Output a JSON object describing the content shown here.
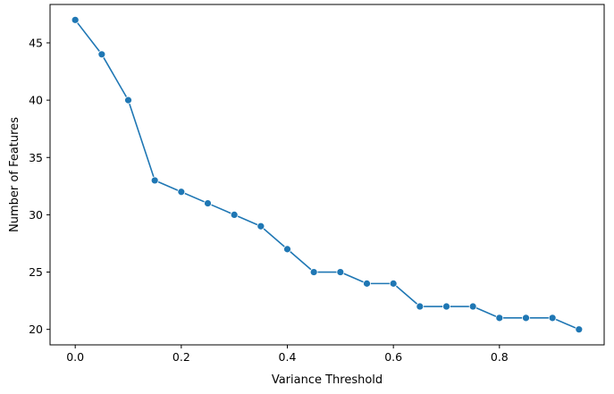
{
  "chart_data": {
    "type": "line",
    "title": "",
    "xlabel": "Variance Threshold",
    "ylabel": "Number of Features",
    "xlim": [
      -0.0475,
      0.9975
    ],
    "ylim": [
      18.65,
      48.35
    ],
    "xticks": [
      0.0,
      0.2,
      0.4,
      0.6,
      0.8
    ],
    "xtick_labels": [
      "0.0",
      "0.2",
      "0.4",
      "0.6",
      "0.8"
    ],
    "yticks": [
      20,
      25,
      30,
      35,
      40,
      45
    ],
    "ytick_labels": [
      "20",
      "25",
      "30",
      "35",
      "40",
      "45"
    ],
    "grid": false,
    "legend": "none",
    "series": [
      {
        "color": "#1f77b4",
        "marker": "circle",
        "x": [
          0.0,
          0.05,
          0.1,
          0.15,
          0.2,
          0.25,
          0.3,
          0.35,
          0.4,
          0.45,
          0.5,
          0.55,
          0.6,
          0.65,
          0.7,
          0.75,
          0.8,
          0.85,
          0.9,
          0.95
        ],
        "y": [
          47,
          44,
          40,
          33,
          32,
          31,
          30,
          29,
          27,
          25,
          25,
          24,
          24,
          22,
          22,
          22,
          21,
          21,
          21,
          20
        ]
      }
    ]
  }
}
